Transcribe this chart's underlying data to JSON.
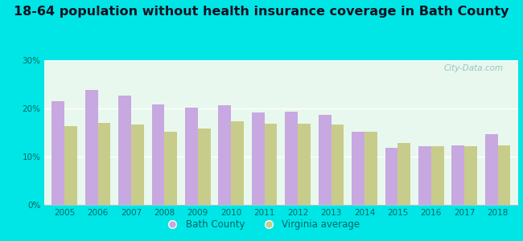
{
  "title": "18-64 population without health insurance coverage in Bath County",
  "years": [
    2005,
    2006,
    2007,
    2008,
    2009,
    2010,
    2011,
    2012,
    2013,
    2014,
    2015,
    2016,
    2017,
    2018
  ],
  "bath_county": [
    21.5,
    23.8,
    22.7,
    20.8,
    20.2,
    20.7,
    19.1,
    19.3,
    18.7,
    15.1,
    11.9,
    12.2,
    12.4,
    14.7
  ],
  "virginia_avg": [
    16.4,
    17.0,
    16.7,
    15.2,
    15.8,
    17.4,
    16.8,
    16.8,
    16.6,
    15.2,
    12.8,
    12.2,
    12.2,
    12.3
  ],
  "bar_color_bath": "#c8a8e0",
  "bar_color_va": "#c8cc8a",
  "background_color": "#e8f8ee",
  "outer_background": "#00e5e5",
  "ylim": [
    0,
    30
  ],
  "yticks": [
    0,
    10,
    20,
    30
  ],
  "ytick_labels": [
    "0%",
    "10%",
    "20%",
    "30%"
  ],
  "legend_bath": "Bath County",
  "legend_va": "Virginia average",
  "watermark": "City-Data.com",
  "title_fontsize": 11.5,
  "bar_width": 0.38
}
